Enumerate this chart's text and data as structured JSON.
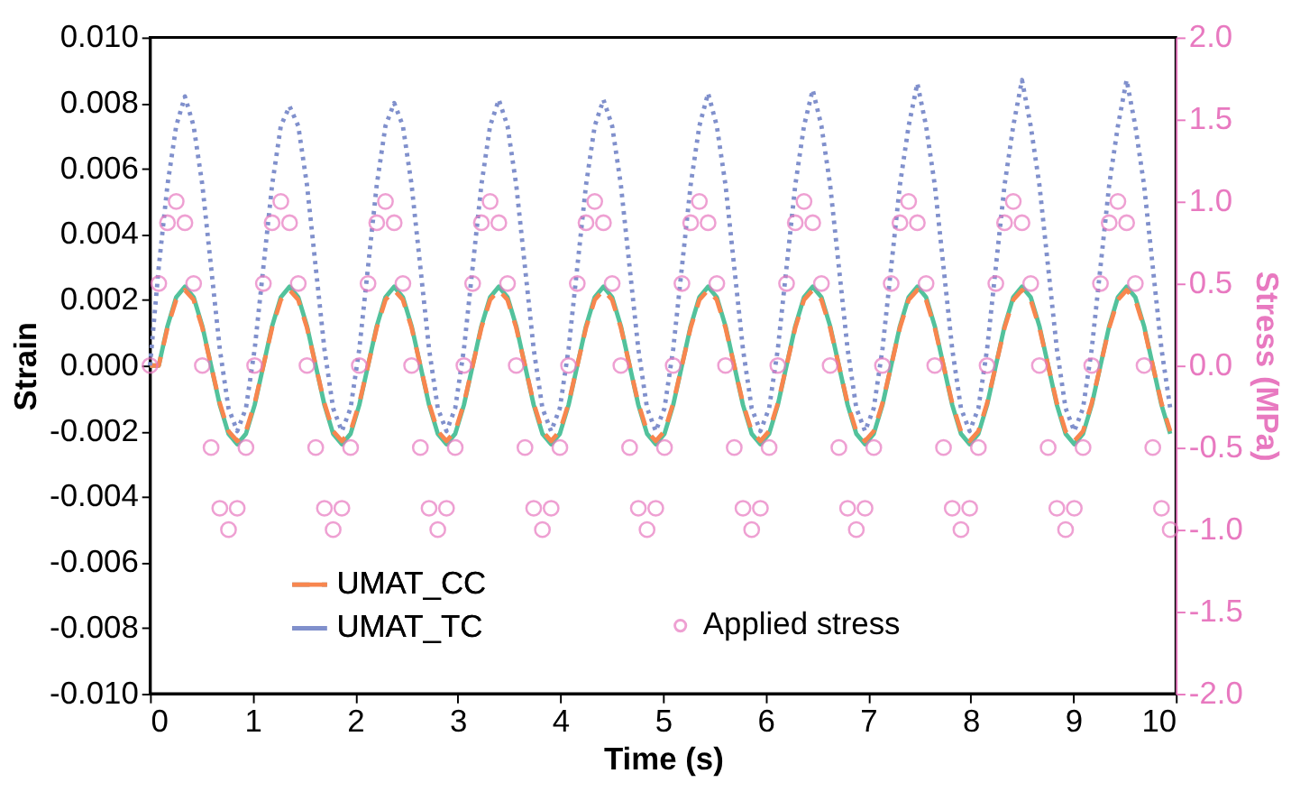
{
  "chart_data": {
    "type": "line",
    "xlabel": "Time (s)",
    "ylabel": "Strain",
    "y2label": "Stress (MPa)",
    "x": [
      0,
      0.085,
      0.17,
      0.255,
      0.34,
      0.425,
      0.51,
      0.595,
      0.68,
      0.765,
      0.85,
      0.935,
      1.02,
      1.105,
      1.19,
      1.275,
      1.36,
      1.445,
      1.53,
      1.615,
      1.7,
      1.785,
      1.87,
      1.955,
      2.04,
      2.125,
      2.21,
      2.295,
      2.38,
      2.465,
      2.55,
      2.635,
      2.72,
      2.805,
      2.89,
      2.975,
      3.06,
      3.145,
      3.23,
      3.315,
      3.4,
      3.485,
      3.57,
      3.655,
      3.74,
      3.825,
      3.91,
      3.995,
      4.08,
      4.165,
      4.25,
      4.335,
      4.42,
      4.505,
      4.59,
      4.675,
      4.76,
      4.845,
      4.93,
      5.015,
      5.1,
      5.185,
      5.27,
      5.355,
      5.44,
      5.525,
      5.61,
      5.695,
      5.78,
      5.865,
      5.95,
      6.035,
      6.12,
      6.205,
      6.29,
      6.375,
      6.46,
      6.545,
      6.63,
      6.715,
      6.8,
      6.885,
      6.97,
      7.055,
      7.14,
      7.225,
      7.31,
      7.395,
      7.48,
      7.565,
      7.65,
      7.735,
      7.82,
      7.905,
      7.99,
      8.075,
      8.16,
      8.245,
      8.33,
      8.415,
      8.5,
      8.585,
      8.67,
      8.755,
      8.84,
      8.925,
      9.01,
      9.095,
      9.18,
      9.265,
      9.35,
      9.435,
      9.52,
      9.605,
      9.69,
      9.775,
      9.86,
      9.945
    ],
    "xlim": [
      0,
      10
    ],
    "xticks": [
      {
        "value": 0,
        "label": "0"
      },
      {
        "value": 1,
        "label": "1"
      },
      {
        "value": 2,
        "label": "2"
      },
      {
        "value": 3,
        "label": "3"
      },
      {
        "value": 4,
        "label": "4"
      },
      {
        "value": 5,
        "label": "5"
      },
      {
        "value": 6,
        "label": "6"
      },
      {
        "value": 7,
        "label": "7"
      },
      {
        "value": 8,
        "label": "8"
      },
      {
        "value": 9,
        "label": "9"
      },
      {
        "value": 10,
        "label": "10"
      }
    ],
    "ylim": [
      -0.01,
      0.01
    ],
    "yticks": [
      {
        "value": -0.01,
        "label": "-0.010"
      },
      {
        "value": -0.008,
        "label": "-0.008"
      },
      {
        "value": -0.006,
        "label": "-0.006"
      },
      {
        "value": -0.004,
        "label": "-0.004"
      },
      {
        "value": -0.002,
        "label": "-0.002"
      },
      {
        "value": 0,
        "label": "0.000"
      },
      {
        "value": 0.002,
        "label": "0.002"
      },
      {
        "value": 0.004,
        "label": "0.004"
      },
      {
        "value": 0.006,
        "label": "0.006"
      },
      {
        "value": 0.008,
        "label": "0.008"
      },
      {
        "value": 0.01,
        "label": "0.010"
      }
    ],
    "y2lim": [
      -2,
      2
    ],
    "y2ticks": [
      {
        "value": -2,
        "label": "-2.0"
      },
      {
        "value": -1.5,
        "label": "-1.5"
      },
      {
        "value": -1,
        "label": "-1.0"
      },
      {
        "value": -0.5,
        "label": "-0.5"
      },
      {
        "value": 0,
        "label": "0.0"
      },
      {
        "value": 0.5,
        "label": "0.5"
      },
      {
        "value": 1,
        "label": "1.0"
      },
      {
        "value": 1.5,
        "label": "1.5"
      },
      {
        "value": 2,
        "label": "2.0"
      }
    ],
    "grid": false,
    "legend": "bottom",
    "series": [
      {
        "color": "#52c29c",
        "line_style": "solid",
        "values": [
          0,
          0,
          0.0012,
          0.00208,
          0.0024,
          0.00208,
          0.0012,
          0,
          -0.0012,
          -0.00208,
          -0.0024,
          -0.00208,
          -0.0012,
          0,
          0.0012,
          0.00208,
          0.0024,
          0.00208,
          0.0012,
          0,
          -0.0012,
          -0.00208,
          -0.0024,
          -0.00208,
          -0.0012,
          0,
          0.0012,
          0.00208,
          0.0024,
          0.00208,
          0.0012,
          0,
          -0.0012,
          -0.00208,
          -0.0024,
          -0.00208,
          -0.0012,
          0,
          0.0012,
          0.00208,
          0.0024,
          0.00208,
          0.0012,
          0,
          -0.0012,
          -0.00208,
          -0.0024,
          -0.00208,
          -0.0012,
          0,
          0.0012,
          0.00208,
          0.0024,
          0.00208,
          0.0012,
          0,
          -0.0012,
          -0.00208,
          -0.0024,
          -0.00208,
          -0.0012,
          0,
          0.0012,
          0.00208,
          0.0024,
          0.00208,
          0.0012,
          0,
          -0.0012,
          -0.00208,
          -0.0024,
          -0.00208,
          -0.0012,
          0,
          0.0012,
          0.00208,
          0.0024,
          0.00208,
          0.0012,
          0,
          -0.0012,
          -0.00208,
          -0.0024,
          -0.00208,
          -0.0012,
          0,
          0.0012,
          0.00208,
          0.0024,
          0.00208,
          0.0012,
          0,
          -0.0012,
          -0.00208,
          -0.0024,
          -0.00208,
          -0.0012,
          0,
          0.0012,
          0.00208,
          0.0024,
          0.00208,
          0.0012,
          0,
          -0.0012,
          -0.00208,
          -0.0024,
          -0.00208,
          -0.0012,
          0,
          0.0012,
          0.00208,
          0.0024,
          0.00208,
          0.0012,
          0,
          -0.0012,
          -0.00208
        ]
      },
      {
        "name": "UMAT_CC",
        "color": "#f8864e",
        "line_style": "dashed",
        "values": [
          0,
          0,
          0.00115,
          0.002,
          0.0023,
          0.002,
          0.00115,
          0,
          -0.00115,
          -0.002,
          -0.0023,
          -0.002,
          -0.00115,
          0,
          0.00115,
          0.002,
          0.0023,
          0.002,
          0.00115,
          0,
          -0.00115,
          -0.002,
          -0.0023,
          -0.002,
          -0.00115,
          0,
          0.00115,
          0.002,
          0.0023,
          0.002,
          0.00115,
          0,
          -0.00115,
          -0.002,
          -0.0023,
          -0.002,
          -0.00115,
          0,
          0.00115,
          0.002,
          0.0023,
          0.002,
          0.00115,
          0,
          -0.00115,
          -0.002,
          -0.0023,
          -0.002,
          -0.00115,
          0,
          0.00115,
          0.002,
          0.0023,
          0.002,
          0.00115,
          0,
          -0.00115,
          -0.002,
          -0.0023,
          -0.002,
          -0.00115,
          0,
          0.00115,
          0.002,
          0.0023,
          0.002,
          0.00115,
          0,
          -0.00115,
          -0.002,
          -0.0023,
          -0.002,
          -0.00115,
          0,
          0.00115,
          0.002,
          0.0023,
          0.002,
          0.00115,
          0,
          -0.00115,
          -0.002,
          -0.0023,
          -0.002,
          -0.00115,
          0,
          0.00115,
          0.002,
          0.0023,
          0.002,
          0.00115,
          0,
          -0.00115,
          -0.002,
          -0.0023,
          -0.002,
          -0.00115,
          0,
          0.00115,
          0.002,
          0.0023,
          0.002,
          0.00115,
          0,
          -0.00115,
          -0.002,
          -0.0023,
          -0.002,
          -0.00115,
          0,
          0.00115,
          0.002,
          0.0023,
          0.002,
          0.00115,
          0,
          -0.00115,
          -0.002
        ]
      },
      {
        "name": "UMAT_TC",
        "color": "#8090cc",
        "line_style": "dotted",
        "values": [
          0,
          0.003,
          0.0055,
          0.0073,
          0.0082,
          0.0073,
          0.0055,
          0.003,
          0.0005,
          -0.0013,
          -0.002,
          -0.0013,
          0.0005,
          0.003,
          0.0055,
          0.0073,
          0.0079,
          0.0073,
          0.0055,
          0.003,
          0.0005,
          -0.0013,
          -0.002,
          -0.0013,
          0.0005,
          0.003,
          0.0055,
          0.0073,
          0.008,
          0.0073,
          0.0055,
          0.003,
          0.0005,
          -0.0013,
          -0.002,
          -0.0013,
          0.0005,
          0.003,
          0.0055,
          0.0073,
          0.0081,
          0.0073,
          0.0055,
          0.003,
          0.0005,
          -0.0013,
          -0.002,
          -0.0013,
          0.0005,
          0.003,
          0.0055,
          0.0073,
          0.0081,
          0.0073,
          0.0055,
          0.003,
          0.0005,
          -0.0013,
          -0.002,
          -0.0013,
          0.0005,
          0.003,
          0.0055,
          0.0073,
          0.0083,
          0.0073,
          0.0055,
          0.003,
          0.0005,
          -0.0013,
          -0.002,
          -0.0013,
          0.0005,
          0.003,
          0.0055,
          0.0073,
          0.0084,
          0.0073,
          0.0055,
          0.003,
          0.0005,
          -0.0013,
          -0.002,
          -0.0013,
          0.0005,
          0.003,
          0.0055,
          0.0073,
          0.0086,
          0.0073,
          0.0055,
          0.003,
          0.0005,
          -0.0013,
          -0.002,
          -0.0013,
          0.0005,
          0.003,
          0.0055,
          0.0073,
          0.0087,
          0.0073,
          0.0055,
          0.003,
          0.0005,
          -0.0013,
          -0.002,
          -0.0013,
          0.0005,
          0.003,
          0.0055,
          0.0073,
          0.0087,
          0.0073,
          0.0055,
          0.003,
          0.0005,
          -0.0013
        ]
      },
      {
        "name": "Applied stress",
        "type": "scatter",
        "marker": "circle",
        "axis": "y2",
        "color": "#e879c0",
        "values": [
          0,
          0.5,
          0.87,
          1,
          0.87,
          0.5,
          0,
          -0.5,
          -0.87,
          -1,
          -0.87,
          -0.5,
          0,
          0.5,
          0.87,
          1,
          0.87,
          0.5,
          0,
          -0.5,
          -0.87,
          -1,
          -0.87,
          -0.5,
          0,
          0.5,
          0.87,
          1,
          0.87,
          0.5,
          0,
          -0.5,
          -0.87,
          -1,
          -0.87,
          -0.5,
          0,
          0.5,
          0.87,
          1,
          0.87,
          0.5,
          0,
          -0.5,
          -0.87,
          -1,
          -0.87,
          -0.5,
          0,
          0.5,
          0.87,
          1,
          0.87,
          0.5,
          0,
          -0.5,
          -0.87,
          -1,
          -0.87,
          -0.5,
          0,
          0.5,
          0.87,
          1,
          0.87,
          0.5,
          0,
          -0.5,
          -0.87,
          -1,
          -0.87,
          -0.5,
          0,
          0.5,
          0.87,
          1,
          0.87,
          0.5,
          0,
          -0.5,
          -0.87,
          -1,
          -0.87,
          -0.5,
          0,
          0.5,
          0.87,
          1,
          0.87,
          0.5,
          0,
          -0.5,
          -0.87,
          -1,
          -0.87,
          -0.5,
          0,
          0.5,
          0.87,
          1,
          0.87,
          0.5,
          0,
          -0.5,
          -0.87,
          -1,
          -0.87,
          -0.5,
          0,
          0.5,
          0.87,
          1,
          0.87,
          0.5,
          0,
          -0.5,
          -0.87,
          -1
        ]
      }
    ]
  }
}
